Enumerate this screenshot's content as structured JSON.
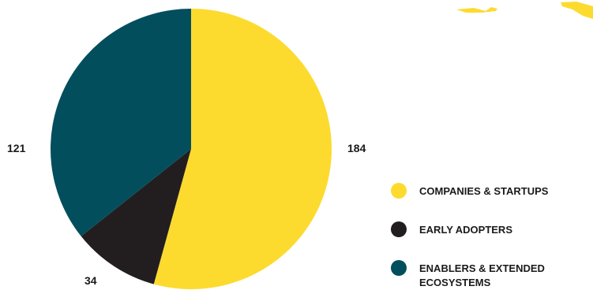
{
  "chart_data": {
    "type": "pie",
    "title": "",
    "categories": [
      "COMPANIES & STARTUPS",
      "EARLY ADOPTERS",
      "ENABLERS & EXTENDED ECOSYSTEMS"
    ],
    "values": [
      184,
      34,
      121
    ],
    "colors": [
      "#fcdb2e",
      "#221e20",
      "#034e5d"
    ],
    "start_angle_deg": 0,
    "direction": "clockwise",
    "legend_position": "bottom-right"
  },
  "labels": {
    "slice_0": "184",
    "slice_1": "34",
    "slice_2": "121"
  },
  "legend": [
    {
      "label": "COMPANIES & STARTUPS",
      "color": "#fcdb2e"
    },
    {
      "label": "EARLY ADOPTERS",
      "color": "#221e20"
    },
    {
      "label": "ENABLERS & EXTENDED ECOSYSTEMS",
      "color": "#034e5d"
    }
  ]
}
